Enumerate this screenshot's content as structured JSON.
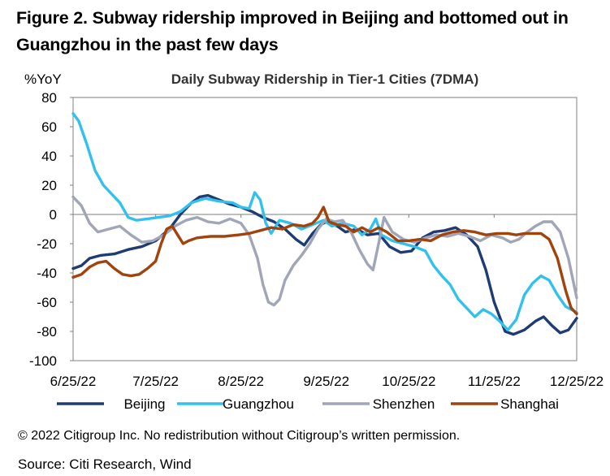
{
  "figure": {
    "title": "Figure 2. Subway ridership improved in Beijing and bottomed out in Guangzhou in the past few days",
    "copyright": "© 2022 Citigroup Inc. No redistribution without Citigroup’s written permission.",
    "source": "Source: Citi Research, Wind"
  },
  "chart_data": {
    "type": "line",
    "title": "Daily Subway Ridership in Tier-1 Cities (7DMA)",
    "ylabel": "%YoY",
    "xlabel": "",
    "ylim": [
      -100,
      80
    ],
    "yticks": [
      80,
      60,
      40,
      20,
      0,
      -20,
      -40,
      -60,
      -80,
      -100
    ],
    "xlim": [
      "2022-06-25",
      "2022-12-25"
    ],
    "xticks": [
      {
        "date": "2022-06-25",
        "label": "6/25/22"
      },
      {
        "date": "2022-07-25",
        "label": "7/25/22"
      },
      {
        "date": "2022-08-25",
        "label": "8/25/22"
      },
      {
        "date": "2022-09-25",
        "label": "9/25/22"
      },
      {
        "date": "2022-10-25",
        "label": "10/25/22"
      },
      {
        "date": "2022-11-25",
        "label": "11/25/22"
      },
      {
        "date": "2022-12-25",
        "label": "12/25/22"
      }
    ],
    "grid": false,
    "legend": "bottom",
    "series": [
      {
        "name": "Beijing",
        "color": "#1f3b73",
        "points": [
          [
            "2022-06-25",
            -37
          ],
          [
            "2022-06-28",
            -35
          ],
          [
            "2022-07-01",
            -30
          ],
          [
            "2022-07-05",
            -28
          ],
          [
            "2022-07-10",
            -27
          ],
          [
            "2022-07-15",
            -24
          ],
          [
            "2022-07-20",
            -22
          ],
          [
            "2022-07-25",
            -18
          ],
          [
            "2022-07-30",
            -10
          ],
          [
            "2022-08-03",
            0
          ],
          [
            "2022-08-07",
            8
          ],
          [
            "2022-08-10",
            12
          ],
          [
            "2022-08-13",
            13
          ],
          [
            "2022-08-17",
            10
          ],
          [
            "2022-08-21",
            7
          ],
          [
            "2022-08-25",
            5
          ],
          [
            "2022-08-29",
            2
          ],
          [
            "2022-09-02",
            -2
          ],
          [
            "2022-09-06",
            -5
          ],
          [
            "2022-09-10",
            -10
          ],
          [
            "2022-09-14",
            -17
          ],
          [
            "2022-09-17",
            -21
          ],
          [
            "2022-09-20",
            -13
          ],
          [
            "2022-09-23",
            -7
          ],
          [
            "2022-09-25",
            -5
          ],
          [
            "2022-09-29",
            -8
          ],
          [
            "2022-10-02",
            -12
          ],
          [
            "2022-10-06",
            -10
          ],
          [
            "2022-10-10",
            -14
          ],
          [
            "2022-10-14",
            -13
          ],
          [
            "2022-10-18",
            -22
          ],
          [
            "2022-10-22",
            -26
          ],
          [
            "2022-10-26",
            -25
          ],
          [
            "2022-10-30",
            -16
          ],
          [
            "2022-11-03",
            -12
          ],
          [
            "2022-11-07",
            -11
          ],
          [
            "2022-11-11",
            -9
          ],
          [
            "2022-11-15",
            -14
          ],
          [
            "2022-11-19",
            -22
          ],
          [
            "2022-11-22",
            -38
          ],
          [
            "2022-11-25",
            -60
          ],
          [
            "2022-11-29",
            -80
          ],
          [
            "2022-12-02",
            -82
          ],
          [
            "2022-12-06",
            -79
          ],
          [
            "2022-12-10",
            -73
          ],
          [
            "2022-12-13",
            -70
          ],
          [
            "2022-12-16",
            -76
          ],
          [
            "2022-12-19",
            -81
          ],
          [
            "2022-12-22",
            -79
          ],
          [
            "2022-12-25",
            -71
          ]
        ]
      },
      {
        "name": "Guangzhou",
        "color": "#33c1ec",
        "points": [
          [
            "2022-06-25",
            69
          ],
          [
            "2022-06-27",
            64
          ],
          [
            "2022-06-30",
            48
          ],
          [
            "2022-07-03",
            30
          ],
          [
            "2022-07-06",
            20
          ],
          [
            "2022-07-09",
            14
          ],
          [
            "2022-07-12",
            8
          ],
          [
            "2022-07-15",
            -2
          ],
          [
            "2022-07-18",
            -4
          ],
          [
            "2022-07-22",
            -3
          ],
          [
            "2022-07-26",
            -2
          ],
          [
            "2022-07-30",
            -1
          ],
          [
            "2022-08-03",
            2
          ],
          [
            "2022-08-07",
            8
          ],
          [
            "2022-08-12",
            11
          ],
          [
            "2022-08-17",
            9
          ],
          [
            "2022-08-22",
            8
          ],
          [
            "2022-08-25",
            5
          ],
          [
            "2022-08-28",
            4
          ],
          [
            "2022-08-30",
            15
          ],
          [
            "2022-09-01",
            10
          ],
          [
            "2022-09-03",
            -6
          ],
          [
            "2022-09-05",
            -13
          ],
          [
            "2022-09-08",
            -4
          ],
          [
            "2022-09-12",
            -6
          ],
          [
            "2022-09-16",
            -10
          ],
          [
            "2022-09-20",
            -7
          ],
          [
            "2022-09-24",
            -4
          ],
          [
            "2022-09-27",
            -8
          ],
          [
            "2022-10-01",
            -6
          ],
          [
            "2022-10-05",
            -8
          ],
          [
            "2022-10-08",
            -14
          ],
          [
            "2022-10-11",
            -10
          ],
          [
            "2022-10-13",
            -3
          ],
          [
            "2022-10-15",
            -14
          ],
          [
            "2022-10-19",
            -18
          ],
          [
            "2022-10-23",
            -20
          ],
          [
            "2022-10-27",
            -22
          ],
          [
            "2022-10-31",
            -25
          ],
          [
            "2022-11-03",
            -35
          ],
          [
            "2022-11-06",
            -42
          ],
          [
            "2022-11-09",
            -48
          ],
          [
            "2022-11-12",
            -58
          ],
          [
            "2022-11-15",
            -64
          ],
          [
            "2022-11-18",
            -70
          ],
          [
            "2022-11-21",
            -65
          ],
          [
            "2022-11-24",
            -68
          ],
          [
            "2022-11-27",
            -73
          ],
          [
            "2022-11-30",
            -79
          ],
          [
            "2022-12-03",
            -72
          ],
          [
            "2022-12-06",
            -55
          ],
          [
            "2022-12-09",
            -47
          ],
          [
            "2022-12-12",
            -42
          ],
          [
            "2022-12-15",
            -45
          ],
          [
            "2022-12-18",
            -55
          ],
          [
            "2022-12-21",
            -63
          ],
          [
            "2022-12-25",
            -67
          ]
        ]
      },
      {
        "name": "Shenzhen",
        "color": "#a0a6b8",
        "points": [
          [
            "2022-06-25",
            12
          ],
          [
            "2022-06-28",
            6
          ],
          [
            "2022-07-01",
            -6
          ],
          [
            "2022-07-04",
            -12
          ],
          [
            "2022-07-08",
            -10
          ],
          [
            "2022-07-12",
            -8
          ],
          [
            "2022-07-16",
            -14
          ],
          [
            "2022-07-20",
            -19
          ],
          [
            "2022-07-24",
            -18
          ],
          [
            "2022-07-28",
            -14
          ],
          [
            "2022-08-01",
            -8
          ],
          [
            "2022-08-05",
            -4
          ],
          [
            "2022-08-09",
            -2
          ],
          [
            "2022-08-13",
            -5
          ],
          [
            "2022-08-17",
            -6
          ],
          [
            "2022-08-21",
            -3
          ],
          [
            "2022-08-25",
            -6
          ],
          [
            "2022-08-28",
            -14
          ],
          [
            "2022-08-31",
            -30
          ],
          [
            "2022-09-02",
            -48
          ],
          [
            "2022-09-04",
            -60
          ],
          [
            "2022-09-06",
            -62
          ],
          [
            "2022-09-08",
            -58
          ],
          [
            "2022-09-10",
            -45
          ],
          [
            "2022-09-13",
            -35
          ],
          [
            "2022-09-16",
            -28
          ],
          [
            "2022-09-19",
            -20
          ],
          [
            "2022-09-22",
            -10
          ],
          [
            "2022-09-25",
            -3
          ],
          [
            "2022-09-28",
            -5
          ],
          [
            "2022-10-01",
            -4
          ],
          [
            "2022-10-04",
            -12
          ],
          [
            "2022-10-07",
            -24
          ],
          [
            "2022-10-10",
            -34
          ],
          [
            "2022-10-12",
            -38
          ],
          [
            "2022-10-14",
            -20
          ],
          [
            "2022-10-16",
            -2
          ],
          [
            "2022-10-19",
            -12
          ],
          [
            "2022-10-23",
            -17
          ],
          [
            "2022-10-27",
            -19
          ],
          [
            "2022-10-31",
            -16
          ],
          [
            "2022-11-04",
            -14
          ],
          [
            "2022-11-08",
            -15
          ],
          [
            "2022-11-12",
            -13
          ],
          [
            "2022-11-16",
            -15
          ],
          [
            "2022-11-20",
            -18
          ],
          [
            "2022-11-24",
            -14
          ],
          [
            "2022-11-28",
            -16
          ],
          [
            "2022-12-01",
            -19
          ],
          [
            "2022-12-04",
            -17
          ],
          [
            "2022-12-07",
            -12
          ],
          [
            "2022-12-10",
            -8
          ],
          [
            "2022-12-13",
            -5
          ],
          [
            "2022-12-16",
            -5
          ],
          [
            "2022-12-19",
            -12
          ],
          [
            "2022-12-22",
            -30
          ],
          [
            "2022-12-25",
            -57
          ]
        ]
      },
      {
        "name": "Shanghai",
        "color": "#a0430d",
        "points": [
          [
            "2022-06-25",
            -43
          ],
          [
            "2022-06-28",
            -41
          ],
          [
            "2022-07-01",
            -36
          ],
          [
            "2022-07-04",
            -33
          ],
          [
            "2022-07-07",
            -32
          ],
          [
            "2022-07-10",
            -37
          ],
          [
            "2022-07-13",
            -41
          ],
          [
            "2022-07-16",
            -42
          ],
          [
            "2022-07-19",
            -41
          ],
          [
            "2022-07-22",
            -37
          ],
          [
            "2022-07-25",
            -32
          ],
          [
            "2022-07-27",
            -20
          ],
          [
            "2022-07-29",
            -10
          ],
          [
            "2022-07-31",
            -8
          ],
          [
            "2022-08-02",
            -14
          ],
          [
            "2022-08-04",
            -20
          ],
          [
            "2022-08-06",
            -18
          ],
          [
            "2022-08-09",
            -16
          ],
          [
            "2022-08-14",
            -15
          ],
          [
            "2022-08-19",
            -15
          ],
          [
            "2022-08-24",
            -14
          ],
          [
            "2022-08-28",
            -13
          ],
          [
            "2022-09-01",
            -11
          ],
          [
            "2022-09-05",
            -9
          ],
          [
            "2022-09-09",
            -10
          ],
          [
            "2022-09-13",
            -7
          ],
          [
            "2022-09-17",
            -8
          ],
          [
            "2022-09-20",
            -6
          ],
          [
            "2022-09-22",
            -2
          ],
          [
            "2022-09-24",
            5
          ],
          [
            "2022-09-26",
            -5
          ],
          [
            "2022-09-29",
            -7
          ],
          [
            "2022-10-02",
            -8
          ],
          [
            "2022-10-05",
            -12
          ],
          [
            "2022-10-08",
            -9
          ],
          [
            "2022-10-11",
            -12
          ],
          [
            "2022-10-14",
            -9
          ],
          [
            "2022-10-17",
            -12
          ],
          [
            "2022-10-21",
            -18
          ],
          [
            "2022-10-25",
            -18
          ],
          [
            "2022-10-29",
            -17
          ],
          [
            "2022-11-02",
            -18
          ],
          [
            "2022-11-06",
            -14
          ],
          [
            "2022-11-10",
            -12
          ],
          [
            "2022-11-14",
            -11
          ],
          [
            "2022-11-18",
            -12
          ],
          [
            "2022-11-22",
            -14
          ],
          [
            "2022-11-26",
            -13
          ],
          [
            "2022-11-30",
            -13
          ],
          [
            "2022-12-03",
            -14
          ],
          [
            "2022-12-06",
            -13
          ],
          [
            "2022-12-09",
            -13
          ],
          [
            "2022-12-12",
            -13
          ],
          [
            "2022-12-15",
            -17
          ],
          [
            "2022-12-18",
            -30
          ],
          [
            "2022-12-21",
            -52
          ],
          [
            "2022-12-23",
            -64
          ],
          [
            "2022-12-25",
            -68
          ]
        ]
      }
    ]
  }
}
